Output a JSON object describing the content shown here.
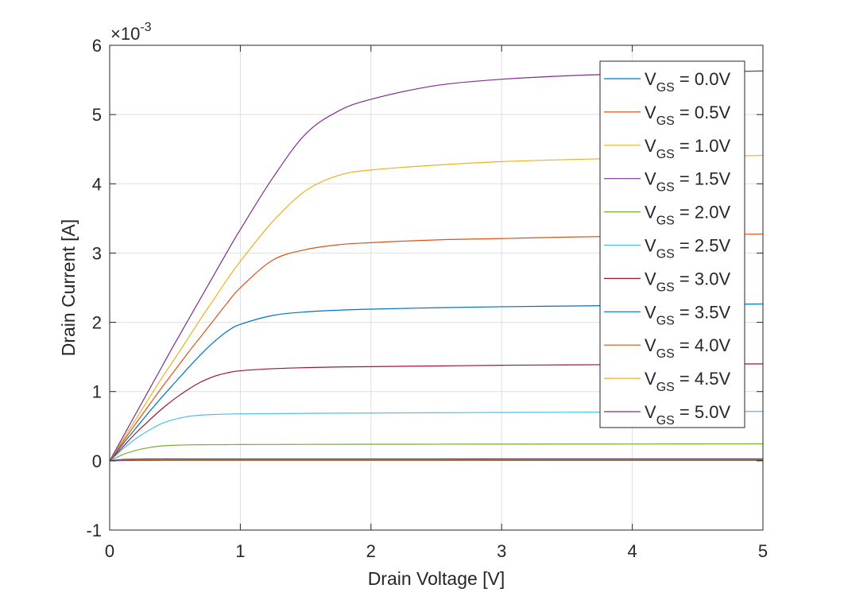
{
  "chart_data": {
    "type": "line",
    "xlabel": "Drain Voltage [V]",
    "ylabel": "Drain Current [A]",
    "y_exponent": {
      "base": "×10",
      "power": "-3"
    },
    "xlim": [
      0,
      5
    ],
    "ylim": [
      -1,
      6
    ],
    "x_ticks": [
      0,
      1,
      2,
      3,
      4,
      5
    ],
    "x_tick_labels": [
      "0",
      "1",
      "2",
      "3",
      "4",
      "5"
    ],
    "y_ticks": [
      -1,
      0,
      1,
      2,
      3,
      4,
      5,
      6
    ],
    "y_tick_labels": [
      "-1",
      "0",
      "1",
      "2",
      "3",
      "4",
      "5",
      "6"
    ],
    "grid": true,
    "legend_placement": "top-right",
    "x": [
      0,
      0.1,
      0.2,
      0.3,
      0.4,
      0.5,
      0.6,
      0.7,
      0.8,
      0.9,
      1,
      1.25,
      1.5,
      1.75,
      2,
      2.5,
      3,
      3.5,
      4,
      4.5,
      5
    ],
    "series": [
      {
        "name_main": "V",
        "name_sub": "GS",
        "name_rest": " = 0.0V",
        "color": "#0072BD",
        "values": [
          0,
          0.004,
          0.006,
          0.007,
          0.008,
          0.008,
          0.008,
          0.008,
          0.008,
          0.008,
          0.008,
          0.008,
          0.008,
          0.008,
          0.008,
          0.008,
          0.008,
          0.008,
          0.008,
          0.008,
          0.008
        ]
      },
      {
        "name_main": "V",
        "name_sub": "GS",
        "name_rest": " = 0.5V",
        "color": "#D95319",
        "values": [
          0,
          0.012,
          0.016,
          0.018,
          0.019,
          0.02,
          0.02,
          0.02,
          0.02,
          0.02,
          0.02,
          0.02,
          0.02,
          0.02,
          0.02,
          0.02,
          0.02,
          0.021,
          0.021,
          0.021,
          0.021
        ]
      },
      {
        "name_main": "V",
        "name_sub": "GS",
        "name_rest": " = 1.0V",
        "color": "#EDB120",
        "values": [
          0,
          0.016,
          0.021,
          0.023,
          0.024,
          0.024,
          0.024,
          0.024,
          0.024,
          0.024,
          0.024,
          0.024,
          0.024,
          0.024,
          0.024,
          0.024,
          0.025,
          0.025,
          0.025,
          0.025,
          0.025
        ]
      },
      {
        "name_main": "V",
        "name_sub": "GS",
        "name_rest": " = 1.5V",
        "color": "#7E2F8E",
        "values": [
          0,
          0.02,
          0.025,
          0.027,
          0.028,
          0.028,
          0.028,
          0.028,
          0.028,
          0.028,
          0.028,
          0.028,
          0.028,
          0.028,
          0.028,
          0.028,
          0.029,
          0.029,
          0.029,
          0.029,
          0.029
        ]
      },
      {
        "name_main": "V",
        "name_sub": "GS",
        "name_rest": " = 2.0V",
        "color": "#77AC30",
        "values": [
          0,
          0.09,
          0.15,
          0.19,
          0.215,
          0.225,
          0.23,
          0.232,
          0.233,
          0.234,
          0.235,
          0.236,
          0.237,
          0.238,
          0.239,
          0.24,
          0.241,
          0.242,
          0.243,
          0.244,
          0.245
        ]
      },
      {
        "name_main": "V",
        "name_sub": "GS",
        "name_rest": " = 2.5V",
        "color": "#4DBEEE",
        "values": [
          0,
          0.17,
          0.32,
          0.44,
          0.54,
          0.6,
          0.64,
          0.66,
          0.67,
          0.675,
          0.678,
          0.682,
          0.685,
          0.688,
          0.69,
          0.694,
          0.698,
          0.702,
          0.706,
          0.71,
          0.714
        ]
      },
      {
        "name_main": "V",
        "name_sub": "GS",
        "name_rest": " = 3.0V",
        "color": "#A2142F",
        "values": [
          0,
          0.2,
          0.4,
          0.58,
          0.75,
          0.9,
          1.03,
          1.14,
          1.22,
          1.27,
          1.3,
          1.33,
          1.345,
          1.355,
          1.36,
          1.37,
          1.38,
          1.385,
          1.39,
          1.395,
          1.4
        ]
      },
      {
        "name_main": "V",
        "name_sub": "GS",
        "name_rest": " = 3.5V",
        "color": "#0072BD",
        "values": [
          0,
          0.24,
          0.47,
          0.7,
          0.92,
          1.13,
          1.34,
          1.54,
          1.72,
          1.87,
          1.97,
          2.1,
          2.15,
          2.175,
          2.19,
          2.21,
          2.225,
          2.235,
          2.245,
          2.255,
          2.265
        ]
      },
      {
        "name_main": "V",
        "name_sub": "GS",
        "name_rest": " = 4.0V",
        "color": "#D95319",
        "values": [
          0,
          0.27,
          0.54,
          0.8,
          1.06,
          1.31,
          1.56,
          1.8,
          2.04,
          2.28,
          2.5,
          2.9,
          3.05,
          3.12,
          3.15,
          3.19,
          3.21,
          3.23,
          3.245,
          3.26,
          3.275
        ]
      },
      {
        "name_main": "V",
        "name_sub": "GS",
        "name_rest": " = 4.5V",
        "color": "#EDB120",
        "values": [
          0,
          0.3,
          0.6,
          0.9,
          1.2,
          1.48,
          1.77,
          2.06,
          2.34,
          2.62,
          2.88,
          3.46,
          3.9,
          4.12,
          4.2,
          4.27,
          4.32,
          4.35,
          4.37,
          4.39,
          4.41
        ]
      },
      {
        "name_main": "V",
        "name_sub": "GS",
        "name_rest": " = 5.0V",
        "color": "#7E2F8E",
        "values": [
          0,
          0.34,
          0.68,
          1.02,
          1.36,
          1.7,
          2.03,
          2.36,
          2.69,
          3.02,
          3.34,
          4.09,
          4.72,
          5.05,
          5.22,
          5.42,
          5.51,
          5.56,
          5.59,
          5.61,
          5.63
        ]
      }
    ]
  }
}
